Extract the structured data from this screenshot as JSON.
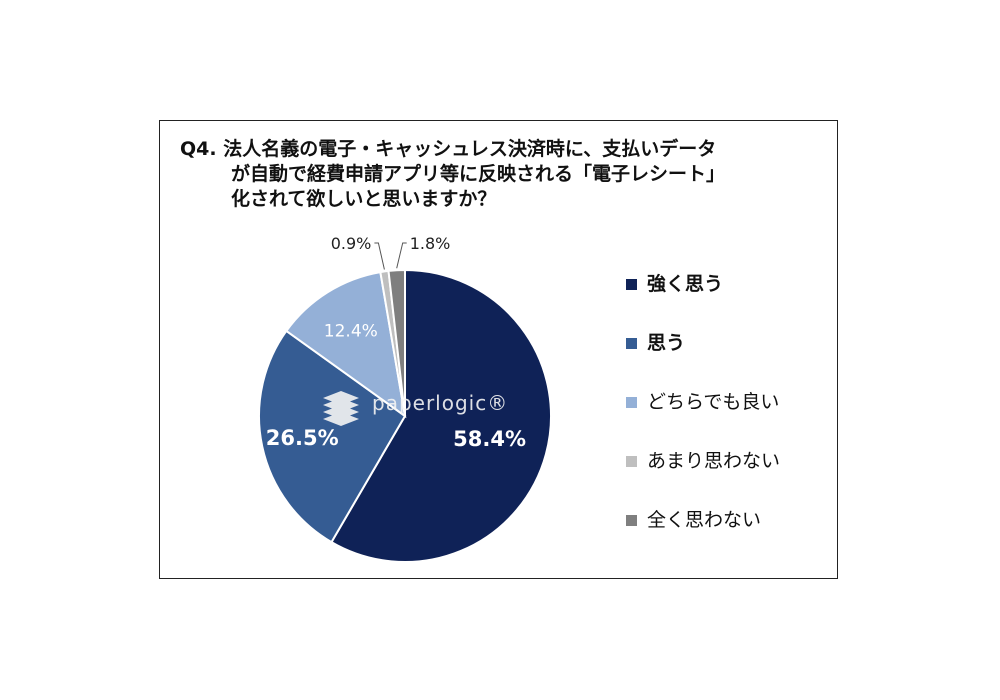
{
  "title_lines": [
    "Q4. 法人名義の電子・キャッシュレス決済時に、支払いデータ",
    "が自動で経費申請アプリ等に反映される「電子レシート」",
    "化されて欲しいと思いますか？"
  ],
  "watermark": "paperlogic®",
  "chart_data": {
    "type": "pie",
    "title": "Q4. 法人名義の電子・キャッシュレス決済時に、支払いデータが自動で経費申請アプリ等に反映される「電子レシート」化されて欲しいと思いますか？",
    "legend_position": "right",
    "series": [
      {
        "name": "強く思う",
        "value": 58.4,
        "label": "58.4%",
        "color": "#0f2257",
        "label_color": "#ffffff",
        "legend_bold": true
      },
      {
        "name": "思う",
        "value": 26.5,
        "label": "26.5%",
        "color": "#355c93",
        "label_color": "#ffffff",
        "legend_bold": true
      },
      {
        "name": "どちらでも良い",
        "value": 12.4,
        "label": "12.4%",
        "color": "#94b0d7",
        "label_color": "#ffffff",
        "legend_bold": false
      },
      {
        "name": "あまり思わない",
        "value": 0.9,
        "label": "0.9%",
        "color": "#bfbfbf",
        "label_color": "#222222",
        "legend_bold": false
      },
      {
        "name": "全く思わない",
        "value": 1.8,
        "label": "1.8%",
        "color": "#7f7f7f",
        "label_color": "#222222",
        "legend_bold": false
      }
    ]
  }
}
